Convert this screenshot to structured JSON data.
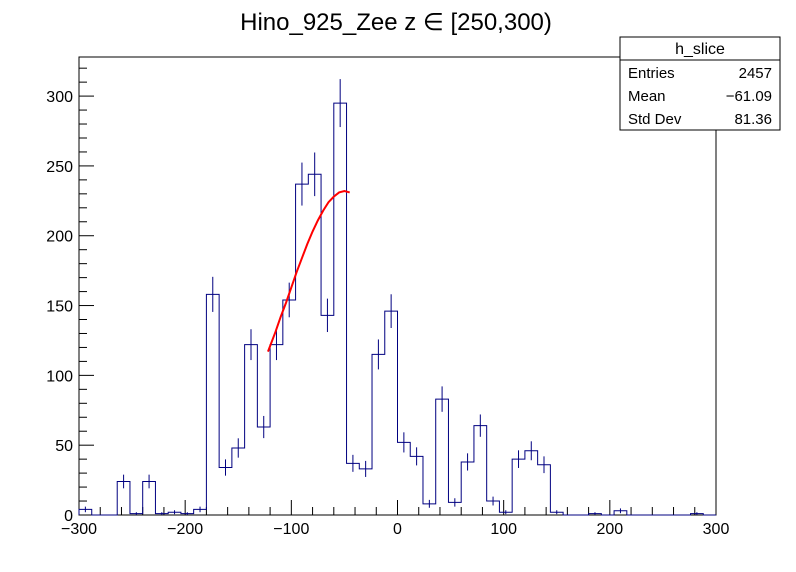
{
  "chart_data": {
    "type": "histogram",
    "title": "Hino_925_Zee z  ∈ [250,300)",
    "xlabel": "",
    "ylabel": "",
    "xlim": [
      -300,
      300
    ],
    "ylim": [
      0,
      328
    ],
    "x_ticks": [
      -300,
      -200,
      -100,
      0,
      100,
      200,
      300
    ],
    "x_tick_labels": [
      "−300",
      "−200",
      "−100",
      "0",
      "100",
      "200",
      "300"
    ],
    "y_ticks": [
      0,
      50,
      100,
      150,
      200,
      250,
      300
    ],
    "y_tick_labels": [
      "0",
      "50",
      "100",
      "150",
      "200",
      "250",
      "300"
    ],
    "colors": {
      "histogram": "#000080",
      "fit": "#ff0000"
    },
    "histogram": {
      "name": "h_slice",
      "bin_width": 12,
      "x_low_edges": [
        -300,
        -288,
        -276,
        -264,
        -252,
        -240,
        -228,
        -216,
        -204,
        -192,
        -180,
        -168,
        -156,
        -144,
        -132,
        -120,
        -108,
        -96,
        -84,
        -72,
        -60,
        -48,
        -36,
        -24,
        -12,
        0,
        12,
        24,
        36,
        48,
        60,
        72,
        84,
        96,
        108,
        120,
        132,
        144,
        156,
        168,
        180,
        192,
        204,
        216,
        228,
        240,
        252,
        264,
        276,
        288
      ],
      "counts": [
        4,
        0,
        0,
        24,
        1,
        24,
        1,
        2,
        1,
        4,
        158,
        34,
        48,
        122,
        63,
        122,
        154,
        237,
        244,
        143,
        295,
        37,
        33,
        115,
        146,
        52,
        42,
        8,
        83,
        9,
        38,
        64,
        10,
        2,
        40,
        46,
        36,
        2,
        0,
        0,
        1,
        0,
        3,
        0,
        0,
        0,
        0,
        0,
        1,
        0
      ]
    },
    "fit": {
      "type": "line",
      "x": [
        -122,
        -115,
        -110,
        -105,
        -100,
        -95,
        -90,
        -85,
        -80,
        -75,
        -70,
        -65,
        -60,
        -55,
        -50,
        -45
      ],
      "y": [
        117,
        131,
        142,
        152,
        163,
        174,
        184,
        194,
        203,
        211,
        218,
        224,
        228,
        231,
        232,
        231
      ]
    },
    "stats_box": {
      "title": "h_slice",
      "rows": [
        {
          "label": "Entries",
          "value": "2457"
        },
        {
          "label": "Mean",
          "value": "−61.09"
        },
        {
          "label": "Std Dev",
          "value": "81.36"
        }
      ]
    }
  }
}
